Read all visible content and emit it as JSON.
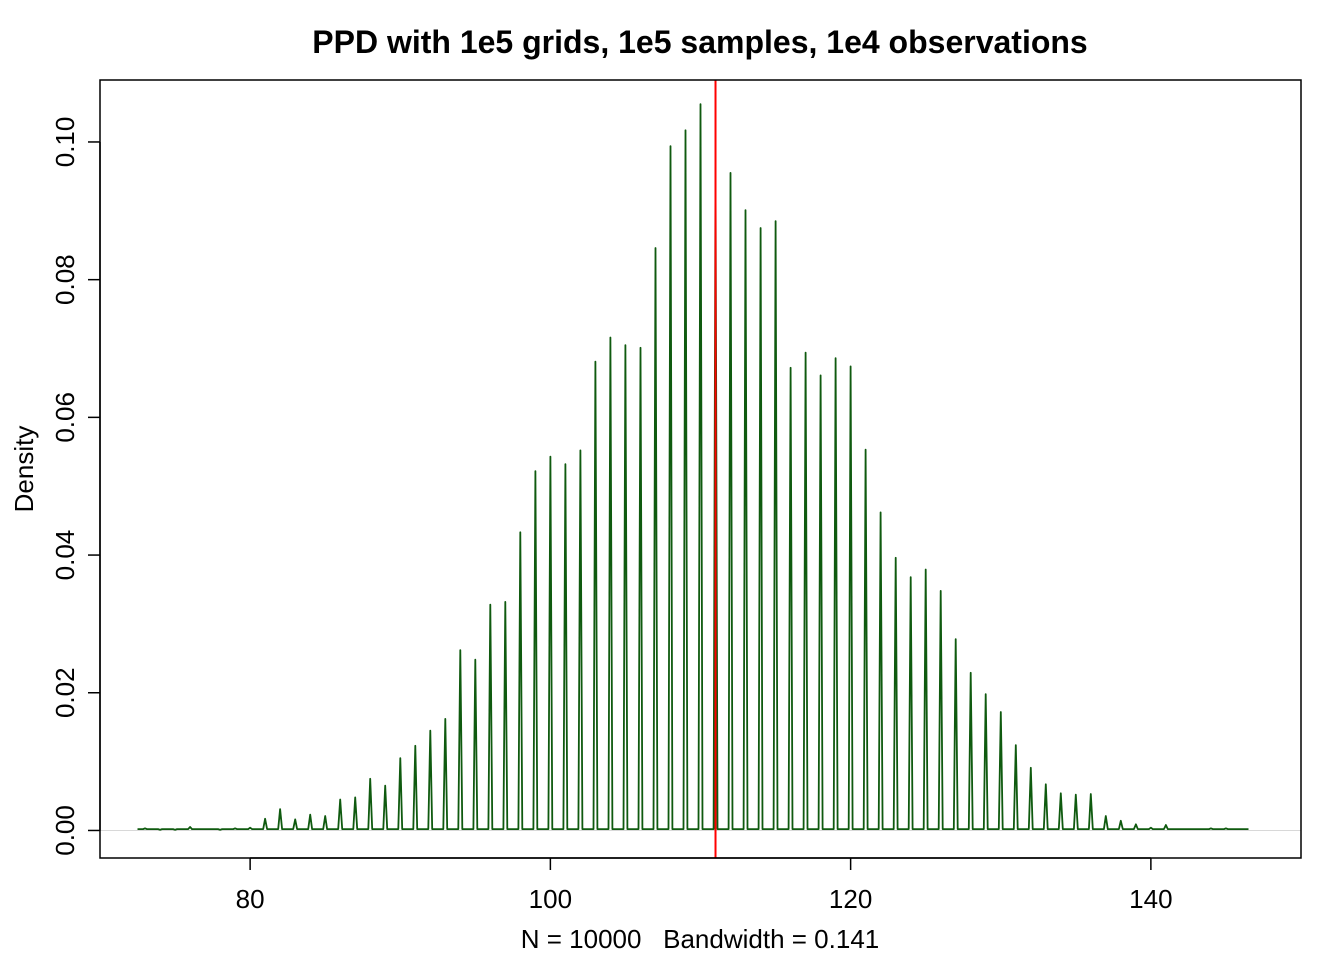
{
  "chart_data": {
    "type": "line",
    "title": "PPD with 1e5 grids, 1e5 samples, 1e4 observations",
    "xlabel": "N = 10000   Bandwidth = 0.141",
    "ylabel": "Density",
    "xlim": [
      70,
      150
    ],
    "ylim": [
      -0.004,
      0.109
    ],
    "xticks": [
      80,
      100,
      120,
      140
    ],
    "xtick_labels": [
      "80",
      "100",
      "120",
      "140"
    ],
    "yticks": [
      0.0,
      0.02,
      0.04,
      0.06,
      0.08,
      0.1
    ],
    "ytick_labels": [
      "0.00",
      "0.02",
      "0.04",
      "0.06",
      "0.08",
      "0.10"
    ],
    "grid": false,
    "legend": "none",
    "series": [
      {
        "color": "#0f5a0f",
        "peak_x": [
          73,
          74,
          75,
          76,
          77,
          78,
          79,
          80,
          81,
          82,
          83,
          84,
          85,
          86,
          87,
          88,
          89,
          90,
          91,
          92,
          93,
          94,
          95,
          96,
          97,
          98,
          99,
          100,
          101,
          102,
          103,
          104,
          105,
          106,
          107,
          108,
          109,
          110,
          111,
          112,
          113,
          114,
          115,
          116,
          117,
          118,
          119,
          120,
          121,
          122,
          123,
          124,
          125,
          126,
          127,
          128,
          129,
          130,
          131,
          132,
          133,
          134,
          135,
          136,
          137,
          138,
          139,
          140,
          141,
          142,
          143,
          144,
          145,
          146
        ],
        "peak_density": [
          0.0003,
          0.0001,
          0.0001,
          0.0005,
          0.0002,
          0.0001,
          0.0003,
          0.0004,
          0.0017,
          0.0031,
          0.0016,
          0.0023,
          0.0021,
          0.0045,
          0.0048,
          0.0075,
          0.0065,
          0.0105,
          0.0123,
          0.0145,
          0.0162,
          0.0262,
          0.0248,
          0.0328,
          0.0332,
          0.0433,
          0.0522,
          0.0543,
          0.0532,
          0.0552,
          0.0681,
          0.0716,
          0.0705,
          0.0701,
          0.0846,
          0.0994,
          0.1017,
          0.1055,
          0.0963,
          0.0955,
          0.0901,
          0.0875,
          0.0885,
          0.0672,
          0.0694,
          0.0661,
          0.0686,
          0.0674,
          0.0553,
          0.0462,
          0.0396,
          0.0368,
          0.0379,
          0.0348,
          0.0278,
          0.0229,
          0.0198,
          0.0172,
          0.0124,
          0.0091,
          0.0067,
          0.0054,
          0.0052,
          0.0053,
          0.0021,
          0.0014,
          0.0009,
          0.0004,
          0.0008,
          0.0002,
          0.0002,
          0.0003,
          0.0003,
          0.0002
        ],
        "trough_density": 0.0002
      }
    ],
    "vline": {
      "x": 111,
      "color": "#ff0000"
    },
    "zero_line_color": "#d8d8d8"
  }
}
